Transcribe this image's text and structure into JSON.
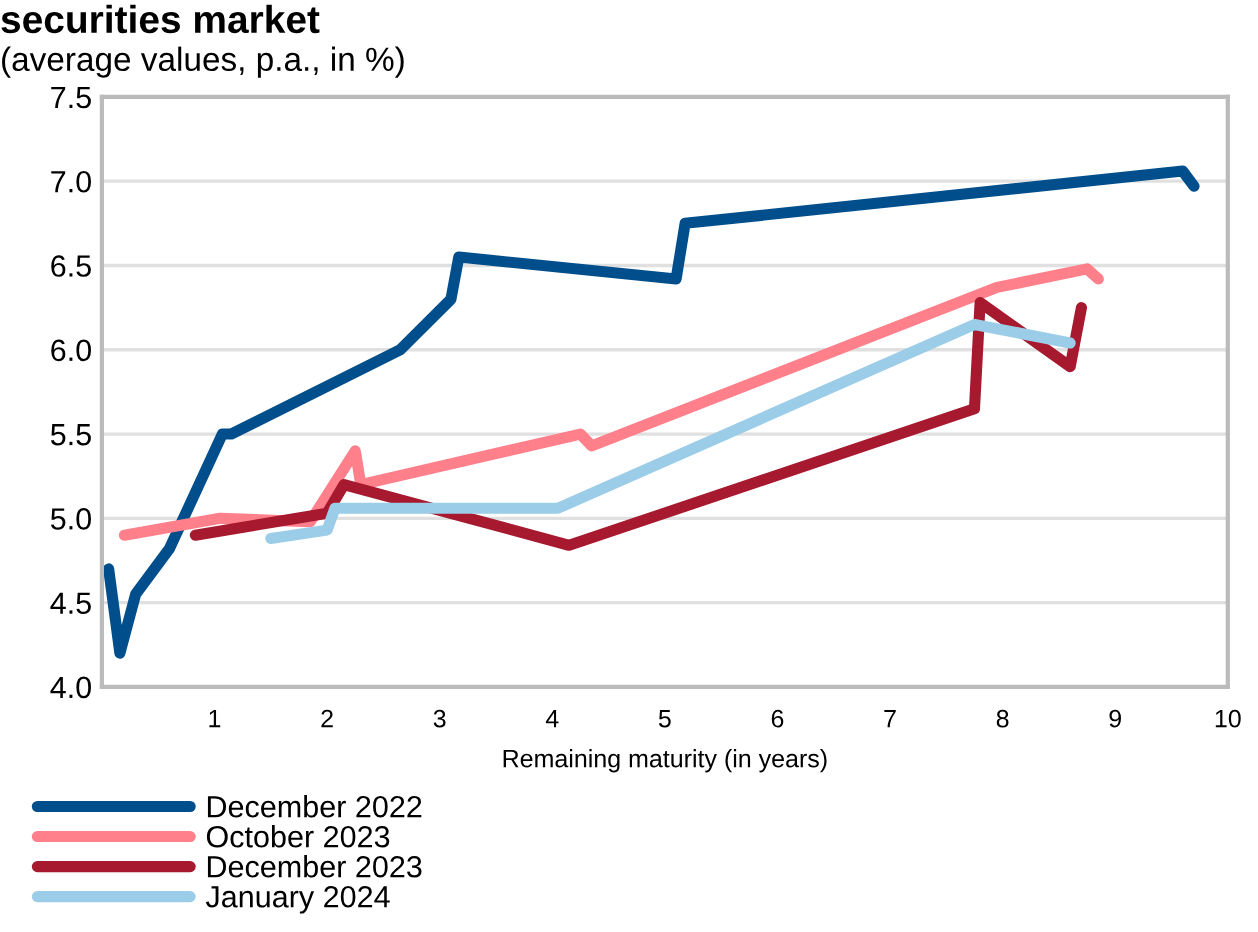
{
  "chart_data": {
    "type": "line",
    "title": "securities market",
    "subtitle": "(average values, p.a., in %)",
    "xlabel": "Remaining maturity (in years)",
    "xlim": [
      0,
      10
    ],
    "xticks": [
      1,
      2,
      3,
      4,
      5,
      6,
      7,
      8,
      9,
      10
    ],
    "ylim": [
      4.0,
      7.5
    ],
    "yticks": [
      {
        "value": 4.0,
        "label": "4.0"
      },
      {
        "value": 4.5,
        "label": "4.5"
      },
      {
        "value": 5.0,
        "label": "5.0"
      },
      {
        "value": 5.5,
        "label": "5.5"
      },
      {
        "value": 6.0,
        "label": "6.0"
      },
      {
        "value": 6.5,
        "label": "6.5"
      },
      {
        "value": 7.0,
        "label": "7.0"
      },
      {
        "value": 7.5,
        "label": "7.5"
      }
    ],
    "grid": "y",
    "legend": "bottom left",
    "marker": "none",
    "line_style": "solid",
    "series": [
      {
        "name": "December 2022",
        "color": "#004f8c",
        "x": [
          0.06,
          0.16,
          0.3,
          0.6,
          1.07,
          1.15,
          2.65,
          3.1,
          3.17,
          5.1,
          5.18,
          9.6,
          9.7
        ],
        "values": [
          4.7,
          4.2,
          4.55,
          4.82,
          5.5,
          5.5,
          6.0,
          6.3,
          6.55,
          6.42,
          6.75,
          7.06,
          6.97
        ]
      },
      {
        "name": "October 2023",
        "color": "#ff7f8a",
        "x": [
          0.2,
          1.05,
          1.85,
          2.25,
          2.3,
          4.25,
          4.35,
          7.95,
          8.75,
          8.85
        ],
        "values": [
          4.9,
          5.0,
          4.98,
          5.4,
          5.2,
          5.5,
          5.43,
          6.37,
          6.48,
          6.42
        ]
      },
      {
        "name": "December 2023",
        "color": "#a6192e",
        "x": [
          0.83,
          2.0,
          2.15,
          4.15,
          7.75,
          7.8,
          8.6,
          8.7
        ],
        "values": [
          4.9,
          5.03,
          5.2,
          4.84,
          5.65,
          6.28,
          5.9,
          6.25
        ]
      },
      {
        "name": "January 2024",
        "color": "#9ccde8",
        "x": [
          1.5,
          2.0,
          2.07,
          4.05,
          7.75,
          8.6
        ],
        "values": [
          4.88,
          4.93,
          5.06,
          5.06,
          6.15,
          6.04
        ]
      }
    ]
  }
}
